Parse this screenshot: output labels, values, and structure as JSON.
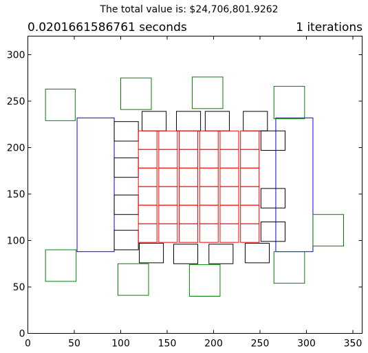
{
  "header": {
    "suptitle": "The total value is: $24,706,801.9262",
    "title_left": "0.0201661586761 seconds",
    "title_right": "1 iterations"
  },
  "chart_data": {
    "type": "rectangles",
    "xlim": [
      0,
      360
    ],
    "ylim": [
      0,
      320
    ],
    "xticks": [
      0,
      50,
      100,
      150,
      200,
      250,
      300,
      350
    ],
    "yticks": [
      0,
      50,
      100,
      150,
      200,
      250,
      300
    ],
    "colors": {
      "blue": "#0000ff",
      "green": "#008000",
      "red": "#ff0000",
      "black": "#000000"
    },
    "blue_rects": [
      {
        "x": 53,
        "y": 88,
        "w": 40,
        "h": 144
      },
      {
        "x": 267,
        "y": 88,
        "w": 40,
        "h": 144
      }
    ],
    "green_rects": [
      {
        "x": 19,
        "y": 229,
        "w": 32,
        "h": 34
      },
      {
        "x": 100,
        "y": 241,
        "w": 33,
        "h": 34
      },
      {
        "x": 177,
        "y": 242,
        "w": 33,
        "h": 34
      },
      {
        "x": 265,
        "y": 231,
        "w": 33,
        "h": 35
      },
      {
        "x": 19,
        "y": 56,
        "w": 33,
        "h": 34
      },
      {
        "x": 97,
        "y": 41,
        "w": 33,
        "h": 34
      },
      {
        "x": 174,
        "y": 40,
        "w": 33,
        "h": 34
      },
      {
        "x": 265,
        "y": 54,
        "w": 33,
        "h": 34
      },
      {
        "x": 307,
        "y": 94,
        "w": 33,
        "h": 34
      }
    ],
    "black_rects": [
      {
        "x": 123,
        "y": 218,
        "w": 26,
        "h": 21
      },
      {
        "x": 160,
        "y": 218,
        "w": 26,
        "h": 21
      },
      {
        "x": 191,
        "y": 218,
        "w": 26,
        "h": 21
      },
      {
        "x": 232,
        "y": 218,
        "w": 26,
        "h": 21
      },
      {
        "x": 93,
        "y": 207,
        "w": 26,
        "h": 21
      },
      {
        "x": 93,
        "y": 168,
        "w": 26,
        "h": 21
      },
      {
        "x": 93,
        "y": 128,
        "w": 26,
        "h": 21
      },
      {
        "x": 93,
        "y": 90,
        "w": 26,
        "h": 21
      },
      {
        "x": 251,
        "y": 197,
        "w": 26,
        "h": 21
      },
      {
        "x": 251,
        "y": 135,
        "w": 26,
        "h": 21
      },
      {
        "x": 251,
        "y": 99,
        "w": 26,
        "h": 21
      },
      {
        "x": 120,
        "y": 76,
        "w": 26,
        "h": 21
      },
      {
        "x": 157,
        "y": 75,
        "w": 26,
        "h": 21
      },
      {
        "x": 195,
        "y": 75,
        "w": 26,
        "h": 21
      },
      {
        "x": 234,
        "y": 76,
        "w": 26,
        "h": 21
      }
    ],
    "red_grid": {
      "x_starts": [
        119,
        141,
        163,
        185,
        207,
        229
      ],
      "y_starts": [
        98,
        118,
        138,
        158,
        178,
        198
      ],
      "w": 20,
      "h": 20
    }
  }
}
